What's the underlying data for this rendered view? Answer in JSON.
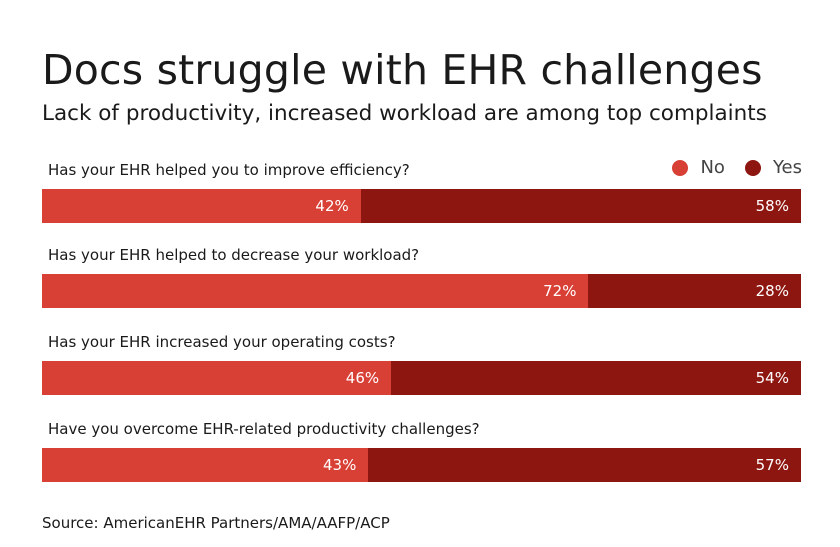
{
  "title": "Docs struggle with EHR challenges",
  "subtitle": "Lack of productivity, increased workload are among top complaints",
  "source": "Source: AmericanEHR Partners/AMA/AAFP/ACP",
  "colors": {
    "no": "#d83f35",
    "yes": "#8e1610"
  },
  "chart_data": {
    "type": "bar",
    "orientation": "horizontal",
    "stacked": true,
    "percent_scale": true,
    "legend_position": "top-right",
    "categories": [
      "Has your EHR helped you to improve efficiency?",
      "Has your EHR helped to decrease your workload?",
      "Has your EHR increased your operating costs?",
      "Have you overcome EHR-related productivity challenges?"
    ],
    "series": [
      {
        "name": "No",
        "values": [
          42,
          72,
          46,
          43
        ],
        "labels": [
          "42%",
          "72%",
          "46%",
          "43%"
        ]
      },
      {
        "name": "Yes",
        "values": [
          58,
          28,
          54,
          57
        ],
        "labels": [
          "58%",
          "28%",
          "54%",
          "57%"
        ]
      }
    ]
  }
}
